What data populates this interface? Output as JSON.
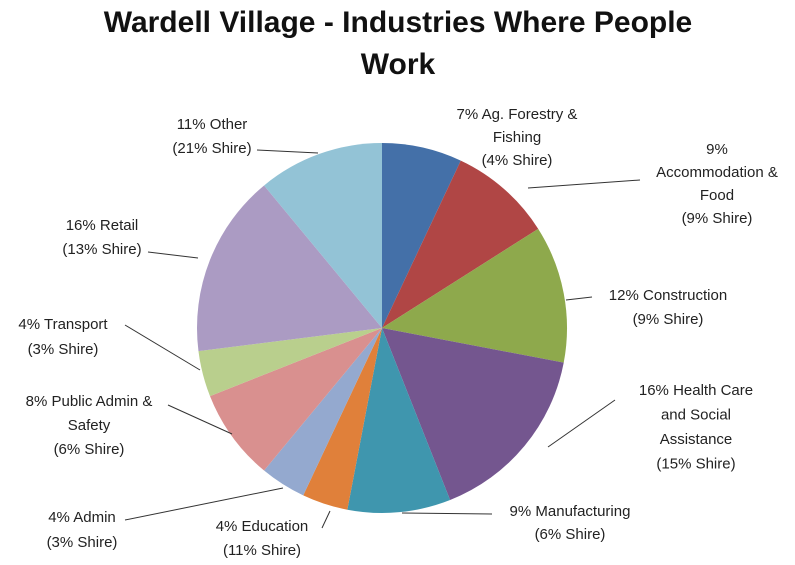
{
  "chart_data": {
    "type": "pie",
    "title": [
      "Wardell Village - Industries Where People",
      "Work"
    ],
    "values": [
      7,
      9,
      12,
      16,
      9,
      4,
      4,
      8,
      4,
      16,
      11
    ],
    "labels": [
      [
        "7% Ag. Forestry &",
        "Fishing",
        "(4% Shire)"
      ],
      [
        "9%",
        "Accommodation &",
        "Food",
        "(9% Shire)"
      ],
      [
        "12% Construction",
        "(9% Shire)"
      ],
      [
        "16% Health Care",
        "and Social",
        "Assistance",
        "(15% Shire)"
      ],
      [
        "9% Manufacturing",
        "(6% Shire)"
      ],
      [
        "4% Education",
        "(11% Shire)"
      ],
      [
        "4% Admin",
        "(3% Shire)"
      ],
      [
        "8% Public Admin &",
        "Safety",
        "(6% Shire)"
      ],
      [
        "4% Transport",
        "(3% Shire)"
      ],
      [
        "16% Retail",
        "(13% Shire)"
      ],
      [
        "11% Other",
        "(21% Shire)"
      ]
    ],
    "colors": [
      "#4470a8",
      "#b04645",
      "#8ea94c",
      "#74568f",
      "#3f96ae",
      "#e0803a",
      "#94a9cf",
      "#d9908f",
      "#b9cf8d",
      "#ab9bc3",
      "#93c3d6"
    ]
  }
}
